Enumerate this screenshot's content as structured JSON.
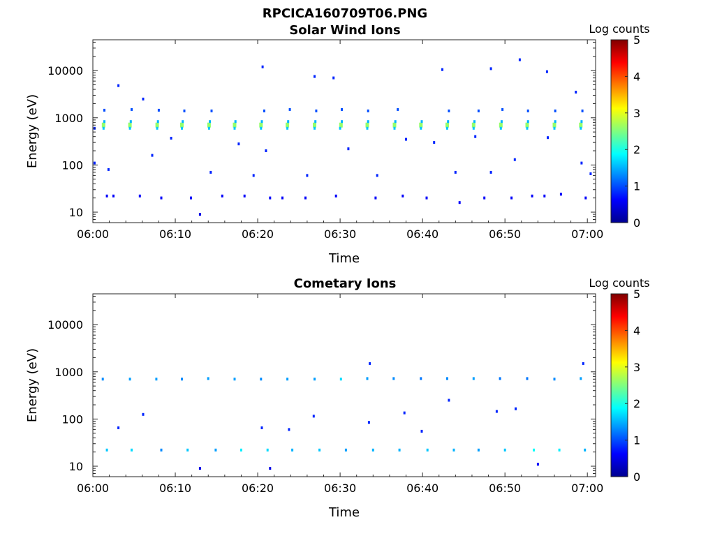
{
  "figure": {
    "filename": "RPCICA160709T06.PNG"
  },
  "chart_data": [
    {
      "type": "heatmap",
      "title": "Solar Wind Ions",
      "xlabel": "Time",
      "ylabel": "Energy (eV)",
      "xlim": [
        "06:00",
        "07:01"
      ],
      "ylim": [
        6,
        45000
      ],
      "yscale": "log",
      "x_ticks": [
        "06:00",
        "06:10",
        "06:20",
        "06:30",
        "06:40",
        "06:50",
        "07:00"
      ],
      "y_ticks": [
        "10",
        "100",
        "1000",
        "10000"
      ],
      "colorbar": {
        "label": "Log counts",
        "range": [
          0,
          5
        ],
        "ticks": [
          "0",
          "1",
          "2",
          "3",
          "4",
          "5"
        ]
      },
      "grid": false,
      "note_units": "cells: [minutes after 06:00, energy eV, log counts]",
      "cells": [
        [
          1.3,
          700,
          2.6
        ],
        [
          1.3,
          600,
          1.6
        ],
        [
          1.4,
          830,
          1.5
        ],
        [
          1.4,
          1450,
          1.0
        ],
        [
          4.5,
          700,
          2.6
        ],
        [
          4.5,
          600,
          1.6
        ],
        [
          4.6,
          830,
          1.5
        ],
        [
          4.7,
          1500,
          1.0
        ],
        [
          7.8,
          700,
          2.6
        ],
        [
          7.8,
          600,
          1.6
        ],
        [
          7.9,
          830,
          1.5
        ],
        [
          8.0,
          1450,
          1.0
        ],
        [
          10.8,
          700,
          2.6
        ],
        [
          10.9,
          830,
          1.5
        ],
        [
          10.8,
          600,
          1.6
        ],
        [
          11.1,
          1400,
          1.0
        ],
        [
          14.1,
          700,
          2.6
        ],
        [
          14.1,
          600,
          1.6
        ],
        [
          14.2,
          830,
          1.5
        ],
        [
          14.4,
          1400,
          1.0
        ],
        [
          17.2,
          700,
          2.6
        ],
        [
          17.2,
          600,
          1.6
        ],
        [
          17.3,
          830,
          1.5
        ],
        [
          20.4,
          700,
          2.6
        ],
        [
          20.4,
          600,
          1.6
        ],
        [
          20.5,
          830,
          1.5
        ],
        [
          20.8,
          1400,
          1.0
        ],
        [
          23.6,
          700,
          2.6
        ],
        [
          23.6,
          600,
          1.6
        ],
        [
          23.7,
          830,
          1.5
        ],
        [
          23.9,
          1500,
          1.0
        ],
        [
          26.9,
          700,
          2.6
        ],
        [
          26.9,
          600,
          1.6
        ],
        [
          27.0,
          830,
          1.5
        ],
        [
          27.1,
          1400,
          1.0
        ],
        [
          30.1,
          700,
          2.6
        ],
        [
          30.0,
          600,
          1.6
        ],
        [
          30.2,
          830,
          1.5
        ],
        [
          30.2,
          1500,
          1.0
        ],
        [
          33.3,
          700,
          2.6
        ],
        [
          33.3,
          600,
          1.6
        ],
        [
          33.4,
          830,
          1.5
        ],
        [
          33.4,
          1400,
          1.0
        ],
        [
          36.6,
          700,
          2.6
        ],
        [
          36.6,
          600,
          1.6
        ],
        [
          36.7,
          830,
          1.5
        ],
        [
          37.0,
          1500,
          1.0
        ],
        [
          39.8,
          700,
          2.6
        ],
        [
          39.8,
          600,
          1.6
        ],
        [
          39.9,
          830,
          1.5
        ],
        [
          43.0,
          700,
          2.6
        ],
        [
          43.0,
          600,
          1.6
        ],
        [
          43.1,
          830,
          1.5
        ],
        [
          43.2,
          1400,
          1.0
        ],
        [
          46.2,
          700,
          2.6
        ],
        [
          46.2,
          600,
          1.6
        ],
        [
          46.3,
          830,
          1.5
        ],
        [
          46.8,
          1400,
          1.0
        ],
        [
          49.5,
          700,
          2.6
        ],
        [
          49.5,
          600,
          1.6
        ],
        [
          49.6,
          830,
          1.5
        ],
        [
          49.7,
          1500,
          1.0
        ],
        [
          52.7,
          700,
          2.6
        ],
        [
          52.7,
          600,
          1.6
        ],
        [
          52.8,
          830,
          1.5
        ],
        [
          52.8,
          1400,
          1.0
        ],
        [
          56.0,
          700,
          2.6
        ],
        [
          56.0,
          600,
          1.6
        ],
        [
          56.1,
          830,
          1.5
        ],
        [
          56.1,
          1400,
          1.0
        ],
        [
          59.2,
          700,
          2.6
        ],
        [
          59.2,
          600,
          1.6
        ],
        [
          59.3,
          830,
          1.5
        ],
        [
          59.4,
          1400,
          1.0
        ],
        [
          1.7,
          22,
          0.6
        ],
        [
          2.5,
          22,
          0.6
        ],
        [
          5.7,
          22,
          0.6
        ],
        [
          8.3,
          20,
          0.6
        ],
        [
          11.9,
          20,
          0.6
        ],
        [
          13.0,
          9,
          0.5
        ],
        [
          15.7,
          22,
          0.6
        ],
        [
          18.4,
          22,
          0.6
        ],
        [
          21.5,
          20,
          0.6
        ],
        [
          23.0,
          20,
          0.6
        ],
        [
          25.8,
          20,
          0.6
        ],
        [
          29.5,
          22,
          0.6
        ],
        [
          34.3,
          20,
          0.6
        ],
        [
          37.6,
          22,
          0.6
        ],
        [
          40.5,
          20,
          0.6
        ],
        [
          44.5,
          16,
          0.6
        ],
        [
          47.5,
          20,
          0.6
        ],
        [
          50.8,
          20,
          0.6
        ],
        [
          53.3,
          22,
          0.6
        ],
        [
          54.8,
          22,
          0.6
        ],
        [
          56.8,
          24,
          0.6
        ],
        [
          59.8,
          20,
          0.6
        ],
        [
          3.1,
          4800,
          0.8
        ],
        [
          6.1,
          2500,
          0.8
        ],
        [
          20.6,
          12000,
          0.8
        ],
        [
          26.9,
          7500,
          0.8
        ],
        [
          29.2,
          7000,
          0.8
        ],
        [
          42.4,
          10500,
          0.8
        ],
        [
          48.3,
          11000,
          0.8
        ],
        [
          51.8,
          17000,
          0.8
        ],
        [
          55.1,
          9500,
          0.8
        ],
        [
          58.6,
          3500,
          0.8
        ],
        [
          9.5,
          370,
          0.8
        ],
        [
          7.2,
          160,
          0.8
        ],
        [
          17.7,
          280,
          0.8
        ],
        [
          21.0,
          200,
          0.8
        ],
        [
          26.0,
          60,
          0.8
        ],
        [
          31.0,
          220,
          0.8
        ],
        [
          38.0,
          350,
          0.8
        ],
        [
          41.4,
          300,
          0.8
        ],
        [
          46.4,
          400,
          0.8
        ],
        [
          51.2,
          130,
          0.8
        ],
        [
          55.2,
          380,
          0.8
        ],
        [
          59.3,
          110,
          0.8
        ],
        [
          0.2,
          110,
          0.8
        ],
        [
          0.2,
          600,
          0.8
        ],
        [
          1.9,
          80,
          0.8
        ],
        [
          14.3,
          70,
          0.8
        ],
        [
          19.5,
          60,
          0.8
        ],
        [
          34.5,
          60,
          0.8
        ],
        [
          44.0,
          70,
          0.8
        ],
        [
          48.3,
          70,
          0.8
        ],
        [
          60.4,
          65,
          0.8
        ]
      ]
    },
    {
      "type": "heatmap",
      "title": "Cometary Ions",
      "xlabel": "Time",
      "ylabel": "Energy (eV)",
      "xlim": [
        "06:00",
        "07:01"
      ],
      "ylim": [
        6,
        45000
      ],
      "yscale": "log",
      "x_ticks": [
        "06:00",
        "06:10",
        "06:20",
        "06:30",
        "06:40",
        "06:50",
        "07:00"
      ],
      "y_ticks": [
        "10",
        "100",
        "1000",
        "10000"
      ],
      "colorbar": {
        "label": "Log counts",
        "range": [
          0,
          5
        ],
        "ticks": [
          "0",
          "1",
          "2",
          "3",
          "4",
          "5"
        ]
      },
      "grid": false,
      "note_units": "cells: [minutes after 06:00, energy eV, log counts]",
      "cells": [
        [
          1.2,
          700,
          1.3
        ],
        [
          4.5,
          700,
          1.4
        ],
        [
          7.7,
          700,
          1.4
        ],
        [
          10.8,
          700,
          1.3
        ],
        [
          14.0,
          720,
          1.4
        ],
        [
          17.2,
          700,
          1.4
        ],
        [
          20.4,
          700,
          1.3
        ],
        [
          23.6,
          700,
          1.4
        ],
        [
          26.9,
          700,
          1.4
        ],
        [
          30.1,
          700,
          1.7
        ],
        [
          33.3,
          720,
          1.4
        ],
        [
          36.5,
          720,
          1.3
        ],
        [
          39.8,
          720,
          1.2
        ],
        [
          43.0,
          720,
          1.3
        ],
        [
          46.2,
          720,
          1.4
        ],
        [
          49.4,
          720,
          1.2
        ],
        [
          52.7,
          720,
          1.2
        ],
        [
          56.0,
          700,
          1.3
        ],
        [
          59.2,
          720,
          1.4
        ],
        [
          1.7,
          22,
          1.6
        ],
        [
          4.7,
          22,
          1.7
        ],
        [
          8.3,
          22,
          1.3
        ],
        [
          11.5,
          22,
          1.6
        ],
        [
          14.9,
          22,
          1.4
        ],
        [
          18.0,
          22,
          1.8
        ],
        [
          21.2,
          22,
          1.7
        ],
        [
          24.2,
          22,
          1.5
        ],
        [
          27.5,
          22,
          1.6
        ],
        [
          30.7,
          22,
          1.4
        ],
        [
          34.0,
          22,
          1.5
        ],
        [
          37.2,
          22,
          1.5
        ],
        [
          40.6,
          22,
          1.6
        ],
        [
          43.8,
          22,
          1.5
        ],
        [
          46.8,
          22,
          1.4
        ],
        [
          50.0,
          22,
          1.6
        ],
        [
          53.5,
          22,
          1.9
        ],
        [
          56.6,
          22,
          1.8
        ],
        [
          59.7,
          22,
          1.5
        ],
        [
          13.0,
          9,
          0.5
        ],
        [
          21.5,
          9,
          0.5
        ],
        [
          54.0,
          11,
          0.6
        ],
        [
          3.1,
          65,
          0.8
        ],
        [
          6.1,
          125,
          0.8
        ],
        [
          20.5,
          65,
          0.8
        ],
        [
          23.8,
          60,
          0.8
        ],
        [
          26.8,
          115,
          0.8
        ],
        [
          33.5,
          85,
          0.8
        ],
        [
          37.8,
          135,
          0.8
        ],
        [
          39.9,
          55,
          0.8
        ],
        [
          43.2,
          250,
          0.8
        ],
        [
          49.0,
          145,
          0.8
        ],
        [
          51.3,
          165,
          0.8
        ],
        [
          59.5,
          1500,
          0.8
        ],
        [
          33.6,
          1500,
          0.8
        ]
      ]
    }
  ]
}
